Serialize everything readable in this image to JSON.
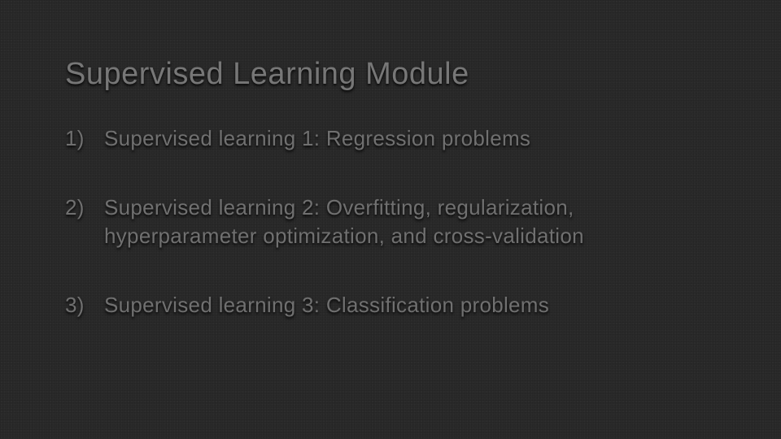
{
  "slide": {
    "title": "Supervised Learning Module",
    "items": [
      "Supervised learning 1: Regression problems",
      "Supervised learning 2: Overfitting, regularization, hyperparameter optimization, and cross-validation",
      "Supervised learning 3: Classification problems"
    ],
    "style": {
      "background_color": "#2a2a2a",
      "title_color": "#777777",
      "title_fontsize": 38,
      "item_color": "#707070",
      "item_fontsize": 26,
      "font_family": "Segoe UI",
      "list_marker": "numeric-paren"
    }
  }
}
